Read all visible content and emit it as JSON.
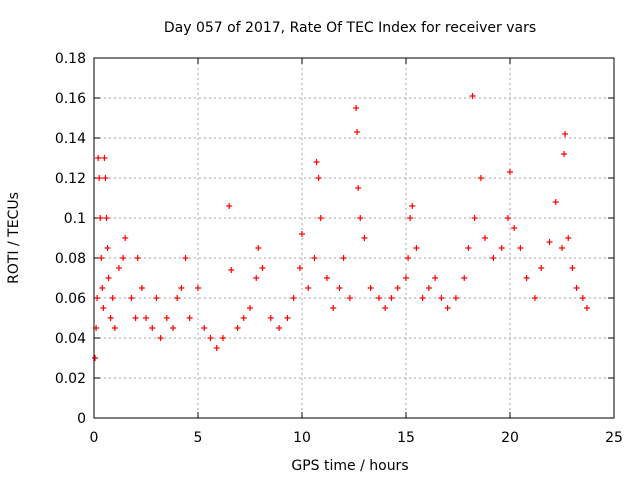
{
  "chart_data": {
    "type": "scatter",
    "title": "Day 057 of 2017, Rate Of TEC Index for receiver vars",
    "xlabel": "GPS time / hours",
    "ylabel": "ROTI / TECUs",
    "xlim": [
      0,
      25
    ],
    "ylim": [
      0,
      0.18
    ],
    "x_ticks": [
      "0",
      "5",
      "10",
      "15",
      "20",
      "25"
    ],
    "x_tick_values": [
      0,
      5,
      10,
      15,
      20,
      25
    ],
    "y_ticks": [
      "0",
      "0.02",
      "0.04",
      "0.06",
      "0.08",
      "0.1",
      "0.12",
      "0.14",
      "0.16",
      "0.18"
    ],
    "y_tick_values": [
      0,
      0.02,
      0.04,
      0.06,
      0.08,
      0.1,
      0.12,
      0.14,
      0.16,
      0.18
    ],
    "grid": true,
    "marker": "plus",
    "color": "#ff0000",
    "series": [
      {
        "points": [
          [
            0.05,
            0.03
          ],
          [
            0.1,
            0.045
          ],
          [
            0.15,
            0.06
          ],
          [
            0.2,
            0.13
          ],
          [
            0.25,
            0.12
          ],
          [
            0.3,
            0.1
          ],
          [
            0.35,
            0.08
          ],
          [
            0.4,
            0.065
          ],
          [
            0.45,
            0.055
          ],
          [
            0.5,
            0.13
          ],
          [
            0.55,
            0.12
          ],
          [
            0.6,
            0.1
          ],
          [
            0.65,
            0.085
          ],
          [
            0.7,
            0.07
          ],
          [
            0.8,
            0.05
          ],
          [
            0.9,
            0.06
          ],
          [
            1.0,
            0.045
          ],
          [
            1.2,
            0.075
          ],
          [
            1.4,
            0.08
          ],
          [
            1.5,
            0.09
          ],
          [
            1.8,
            0.06
          ],
          [
            2.0,
            0.05
          ],
          [
            2.1,
            0.08
          ],
          [
            2.3,
            0.065
          ],
          [
            2.5,
            0.05
          ],
          [
            2.8,
            0.045
          ],
          [
            3.0,
            0.06
          ],
          [
            3.2,
            0.04
          ],
          [
            3.5,
            0.05
          ],
          [
            3.8,
            0.045
          ],
          [
            4.0,
            0.06
          ],
          [
            4.2,
            0.065
          ],
          [
            4.4,
            0.08
          ],
          [
            4.6,
            0.05
          ],
          [
            5.0,
            0.065
          ],
          [
            5.3,
            0.045
          ],
          [
            5.6,
            0.04
          ],
          [
            5.9,
            0.035
          ],
          [
            6.2,
            0.04
          ],
          [
            6.5,
            0.106
          ],
          [
            6.6,
            0.074
          ],
          [
            6.9,
            0.045
          ],
          [
            7.2,
            0.05
          ],
          [
            7.5,
            0.055
          ],
          [
            7.8,
            0.07
          ],
          [
            7.9,
            0.085
          ],
          [
            8.1,
            0.075
          ],
          [
            8.5,
            0.05
          ],
          [
            8.9,
            0.045
          ],
          [
            9.3,
            0.05
          ],
          [
            9.6,
            0.06
          ],
          [
            9.9,
            0.075
          ],
          [
            10.0,
            0.092
          ],
          [
            10.3,
            0.065
          ],
          [
            10.6,
            0.08
          ],
          [
            10.7,
            0.128
          ],
          [
            10.8,
            0.12
          ],
          [
            10.9,
            0.1
          ],
          [
            11.2,
            0.07
          ],
          [
            11.5,
            0.055
          ],
          [
            11.8,
            0.065
          ],
          [
            12.0,
            0.08
          ],
          [
            12.3,
            0.06
          ],
          [
            12.6,
            0.155
          ],
          [
            12.65,
            0.143
          ],
          [
            12.7,
            0.115
          ],
          [
            12.8,
            0.1
          ],
          [
            13.0,
            0.09
          ],
          [
            13.3,
            0.065
          ],
          [
            13.7,
            0.06
          ],
          [
            14.0,
            0.055
          ],
          [
            14.3,
            0.06
          ],
          [
            14.6,
            0.065
          ],
          [
            15.0,
            0.07
          ],
          [
            15.1,
            0.08
          ],
          [
            15.2,
            0.1
          ],
          [
            15.3,
            0.106
          ],
          [
            15.5,
            0.085
          ],
          [
            15.8,
            0.06
          ],
          [
            16.1,
            0.065
          ],
          [
            16.4,
            0.07
          ],
          [
            16.7,
            0.06
          ],
          [
            17.0,
            0.055
          ],
          [
            17.4,
            0.06
          ],
          [
            17.8,
            0.07
          ],
          [
            18.0,
            0.085
          ],
          [
            18.2,
            0.161
          ],
          [
            18.3,
            0.1
          ],
          [
            18.6,
            0.12
          ],
          [
            18.8,
            0.09
          ],
          [
            19.2,
            0.08
          ],
          [
            19.6,
            0.085
          ],
          [
            19.9,
            0.1
          ],
          [
            20.0,
            0.123
          ],
          [
            20.2,
            0.095
          ],
          [
            20.5,
            0.085
          ],
          [
            20.8,
            0.07
          ],
          [
            21.2,
            0.06
          ],
          [
            21.5,
            0.075
          ],
          [
            21.9,
            0.088
          ],
          [
            22.2,
            0.108
          ],
          [
            22.5,
            0.085
          ],
          [
            22.6,
            0.132
          ],
          [
            22.65,
            0.142
          ],
          [
            22.8,
            0.09
          ],
          [
            23.0,
            0.075
          ],
          [
            23.2,
            0.065
          ],
          [
            23.5,
            0.06
          ],
          [
            23.7,
            0.055
          ]
        ]
      }
    ]
  }
}
